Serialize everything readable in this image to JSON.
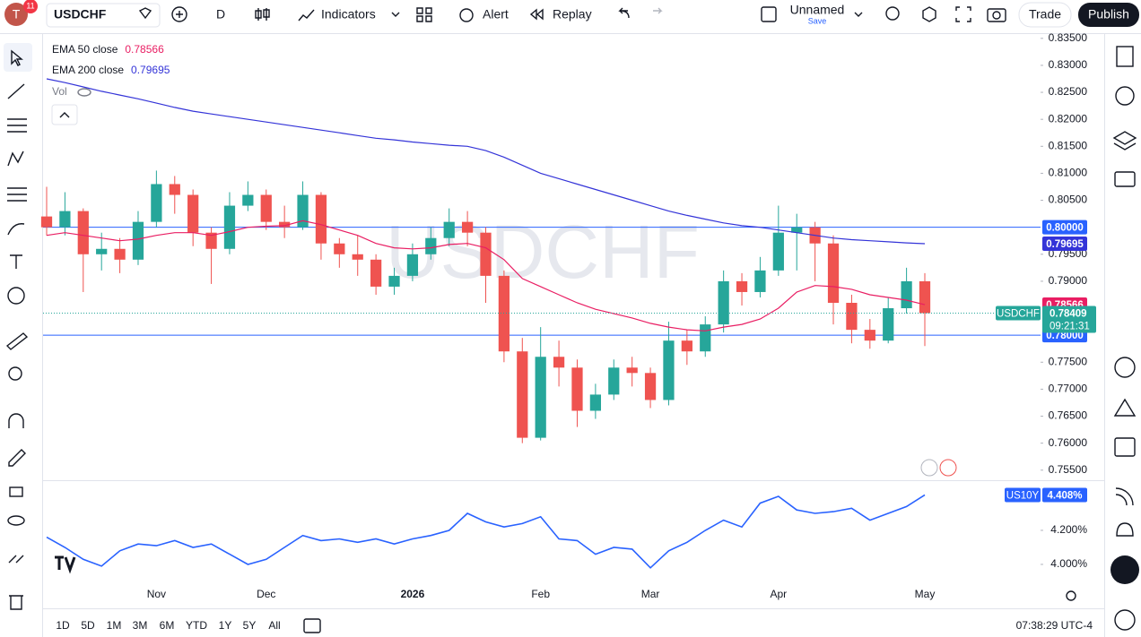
{
  "toolbar": {
    "interval": "D",
    "indicators": "Indicators",
    "alert": "Alert",
    "replay": "Replay",
    "layout_name": "Unnamed",
    "save": "Save",
    "trade": "Trade",
    "publish": "Publish",
    "notifications": "11"
  },
  "range_buttons": [
    "1D",
    "5D",
    "1M",
    "3M",
    "6M",
    "YTD",
    "1Y",
    "5Y",
    "All"
  ],
  "clock": "07:38:29 UTC-4",
  "chart_data": [
    {
      "type": "candlestick",
      "symbol": "USDCHF",
      "volume_label": "Vol",
      "countdown": "09:21:31",
      "up_color": "#26a69a",
      "down_color": "#ef5350",
      "grid": false,
      "categories": [
        null,
        null,
        null,
        null,
        null,
        null,
        "Nov",
        null,
        null,
        null,
        null,
        null,
        "Dec",
        null,
        null,
        null,
        null,
        null,
        null,
        null,
        "2026",
        null,
        null,
        null,
        null,
        null,
        null,
        "Feb",
        null,
        null,
        null,
        null,
        null,
        "Mar",
        null,
        null,
        null,
        null,
        null,
        null,
        "Apr",
        null,
        null,
        null,
        null,
        null,
        null,
        null,
        "May"
      ],
      "candles": [
        [
          0.802,
          0.8075,
          0.7985,
          0.8
        ],
        [
          0.8,
          0.8065,
          0.7985,
          0.803
        ],
        [
          0.803,
          0.8035,
          0.788,
          0.795
        ],
        [
          0.795,
          0.799,
          0.792,
          0.796
        ],
        [
          0.796,
          0.798,
          0.7915,
          0.794
        ],
        [
          0.794,
          0.803,
          0.793,
          0.801
        ],
        [
          0.801,
          0.8105,
          0.8,
          0.808
        ],
        [
          0.808,
          0.8095,
          0.8025,
          0.806
        ],
        [
          0.806,
          0.807,
          0.7965,
          0.799
        ],
        [
          0.799,
          0.8,
          0.7895,
          0.796
        ],
        [
          0.796,
          0.8065,
          0.795,
          0.804
        ],
        [
          0.804,
          0.8085,
          0.803,
          0.806
        ],
        [
          0.806,
          0.807,
          0.7995,
          0.801
        ],
        [
          0.801,
          0.804,
          0.798,
          0.8
        ],
        [
          0.8,
          0.8085,
          0.7995,
          0.806
        ],
        [
          0.806,
          0.8065,
          0.794,
          0.797
        ],
        [
          0.797,
          0.798,
          0.7925,
          0.795
        ],
        [
          0.795,
          0.7985,
          0.791,
          0.794
        ],
        [
          0.794,
          0.795,
          0.7875,
          0.789
        ],
        [
          0.789,
          0.7925,
          0.7875,
          0.791
        ],
        [
          0.791,
          0.797,
          0.79,
          0.795
        ],
        [
          0.795,
          0.8,
          0.794,
          0.798
        ],
        [
          0.798,
          0.8035,
          0.7965,
          0.801
        ],
        [
          0.801,
          0.803,
          0.7965,
          0.799
        ],
        [
          0.799,
          0.8,
          0.786,
          0.791
        ],
        [
          0.791,
          0.792,
          0.775,
          0.777
        ],
        [
          0.777,
          0.7795,
          0.76,
          0.761
        ],
        [
          0.761,
          0.7815,
          0.7605,
          0.776
        ],
        [
          0.776,
          0.779,
          0.7705,
          0.774
        ],
        [
          0.774,
          0.7755,
          0.763,
          0.766
        ],
        [
          0.766,
          0.771,
          0.7645,
          0.769
        ],
        [
          0.769,
          0.7755,
          0.768,
          0.774
        ],
        [
          0.774,
          0.776,
          0.7705,
          0.773
        ],
        [
          0.773,
          0.774,
          0.7665,
          0.768
        ],
        [
          0.768,
          0.7825,
          0.767,
          0.779
        ],
        [
          0.779,
          0.781,
          0.7745,
          0.777
        ],
        [
          0.777,
          0.7835,
          0.776,
          0.782
        ],
        [
          0.782,
          0.792,
          0.7805,
          0.79
        ],
        [
          0.79,
          0.7915,
          0.7855,
          0.788
        ],
        [
          0.788,
          0.7945,
          0.787,
          0.792
        ],
        [
          0.792,
          0.804,
          0.791,
          0.799
        ],
        [
          0.799,
          0.8025,
          0.792,
          0.8
        ],
        [
          0.8,
          0.801,
          0.79,
          0.797
        ],
        [
          0.797,
          0.7985,
          0.782,
          0.786
        ],
        [
          0.786,
          0.7875,
          0.7785,
          0.781
        ],
        [
          0.781,
          0.783,
          0.7775,
          0.779
        ],
        [
          0.779,
          0.787,
          0.7785,
          0.785
        ],
        [
          0.785,
          0.7925,
          0.784,
          0.79
        ],
        [
          0.79,
          0.7915,
          0.778,
          0.78409
        ]
      ],
      "series": [
        {
          "name": "EMA 50 close",
          "color": "#e91e63",
          "values": [
            0.7985,
            0.799,
            0.7985,
            0.798,
            0.7975,
            0.7978,
            0.7985,
            0.799,
            0.799,
            0.7985,
            0.7992,
            0.8,
            0.8002,
            0.8003,
            0.8012,
            0.8005,
            0.7995,
            0.7985,
            0.797,
            0.7962,
            0.796,
            0.7962,
            0.7968,
            0.797,
            0.7962,
            0.794,
            0.7905,
            0.789,
            0.7875,
            0.786,
            0.7848,
            0.784,
            0.7832,
            0.7822,
            0.7815,
            0.781,
            0.7808,
            0.7815,
            0.782,
            0.783,
            0.785,
            0.788,
            0.7892,
            0.789,
            0.7885,
            0.7875,
            0.787,
            0.7865,
            0.78566
          ]
        },
        {
          "name": "EMA 200 close",
          "color": "#3434d8",
          "values": [
            0.8275,
            0.8268,
            0.826,
            0.8252,
            0.8245,
            0.8238,
            0.823,
            0.8222,
            0.8215,
            0.821,
            0.8205,
            0.82,
            0.8195,
            0.819,
            0.8185,
            0.818,
            0.8175,
            0.817,
            0.8165,
            0.8162,
            0.8158,
            0.8155,
            0.8152,
            0.815,
            0.8142,
            0.813,
            0.8115,
            0.81,
            0.809,
            0.808,
            0.807,
            0.806,
            0.805,
            0.804,
            0.803,
            0.8022,
            0.8015,
            0.8008,
            0.8003,
            0.8,
            0.7995,
            0.799,
            0.7985,
            0.798,
            0.7977,
            0.7975,
            0.7973,
            0.7971,
            0.79695
          ]
        }
      ],
      "hlines": [
        {
          "value": 0.8,
          "label": "0.80000",
          "color": "#2962ff"
        },
        {
          "value": 0.78,
          "label": "0.78000",
          "color": "#2962ff"
        }
      ],
      "ylim": [
        0.7533,
        0.8358
      ],
      "yticks": [
        {
          "value": 0.835,
          "label": "0.83500"
        },
        {
          "value": 0.83,
          "label": "0.83000"
        },
        {
          "value": 0.825,
          "label": "0.82500"
        },
        {
          "value": 0.82,
          "label": "0.82000"
        },
        {
          "value": 0.815,
          "label": "0.81500"
        },
        {
          "value": 0.81,
          "label": "0.81000"
        },
        {
          "value": 0.805,
          "label": "0.80500"
        },
        {
          "value": 0.795,
          "label": "0.79500"
        },
        {
          "value": 0.79,
          "label": "0.79000"
        },
        {
          "value": 0.775,
          "label": "0.77500"
        },
        {
          "value": 0.77,
          "label": "0.77000"
        },
        {
          "value": 0.765,
          "label": "0.76500"
        },
        {
          "value": 0.76,
          "label": "0.76000"
        },
        {
          "value": 0.755,
          "label": "0.75500"
        }
      ]
    },
    {
      "type": "line",
      "series": [
        {
          "name": "US10Y",
          "color": "#2962ff",
          "values": [
            4.16,
            4.1,
            4.03,
            3.99,
            4.08,
            4.12,
            4.11,
            4.14,
            4.1,
            4.12,
            4.06,
            4.0,
            4.03,
            4.1,
            4.17,
            4.14,
            4.15,
            4.13,
            4.15,
            4.12,
            4.15,
            4.17,
            4.2,
            4.3,
            4.25,
            4.22,
            4.24,
            4.28,
            4.15,
            4.14,
            4.06,
            4.1,
            4.09,
            3.98,
            4.08,
            4.13,
            4.2,
            4.26,
            4.22,
            4.36,
            4.4,
            4.32,
            4.3,
            4.31,
            4.33,
            4.26,
            4.3,
            4.34,
            4.408
          ],
          "value_labels": [
            null,
            null,
            null,
            null,
            null,
            null,
            null,
            null,
            null,
            null,
            null,
            null,
            null,
            null,
            null,
            null,
            null,
            null,
            null,
            null,
            null,
            null,
            null,
            null,
            null,
            null,
            null,
            null,
            null,
            null,
            null,
            null,
            null,
            null,
            null,
            null,
            null,
            null,
            null,
            null,
            null,
            null,
            null,
            null,
            null,
            null,
            null,
            null,
            "4.408%"
          ]
        }
      ],
      "ylim": [
        3.905,
        4.484
      ],
      "yticks": [
        {
          "value": 4.2,
          "label": "4.200%"
        },
        {
          "value": 4,
          "label": "4.000%"
        }
      ]
    }
  ]
}
